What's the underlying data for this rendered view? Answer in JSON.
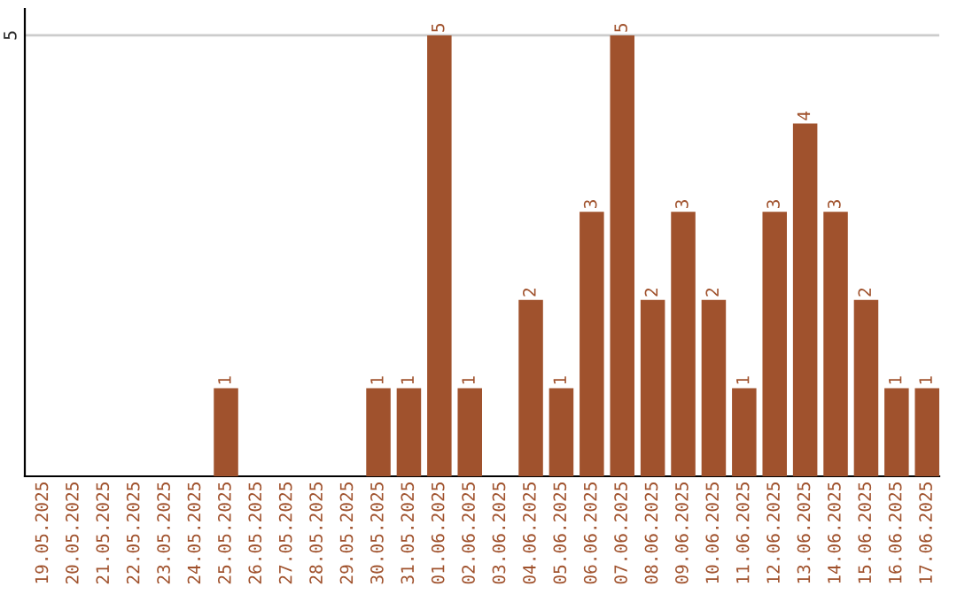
{
  "chart_data": {
    "type": "bar",
    "categories": [
      "19.05.2025",
      "20.05.2025",
      "21.05.2025",
      "22.05.2025",
      "23.05.2025",
      "24.05.2025",
      "25.05.2025",
      "26.05.2025",
      "27.05.2025",
      "28.05.2025",
      "29.05.2025",
      "30.05.2025",
      "31.05.2025",
      "01.06.2025",
      "02.06.2025",
      "03.06.2025",
      "04.06.2025",
      "05.06.2025",
      "06.06.2025",
      "07.06.2025",
      "08.06.2025",
      "09.06.2025",
      "10.06.2025",
      "11.06.2025",
      "12.06.2025",
      "13.06.2025",
      "14.06.2025",
      "15.06.2025",
      "16.06.2025",
      "17.06.2025"
    ],
    "values": [
      0,
      0,
      0,
      0,
      0,
      0,
      1,
      0,
      0,
      0,
      0,
      1,
      1,
      5,
      1,
      0,
      2,
      1,
      3,
      5,
      2,
      3,
      2,
      1,
      3,
      4,
      3,
      2,
      1,
      1
    ],
    "value_labels": [
      null,
      null,
      null,
      null,
      null,
      null,
      "1",
      null,
      null,
      null,
      null,
      "1",
      "1",
      "5",
      "1",
      null,
      "2",
      "1",
      "3",
      "5",
      "2",
      "3",
      "2",
      "1",
      "3",
      "4",
      "3",
      "2",
      "1",
      "1"
    ],
    "color": "#a0522d",
    "ylim": [
      0,
      5.3
    ],
    "yticks": [
      5
    ],
    "grid": "y"
  }
}
